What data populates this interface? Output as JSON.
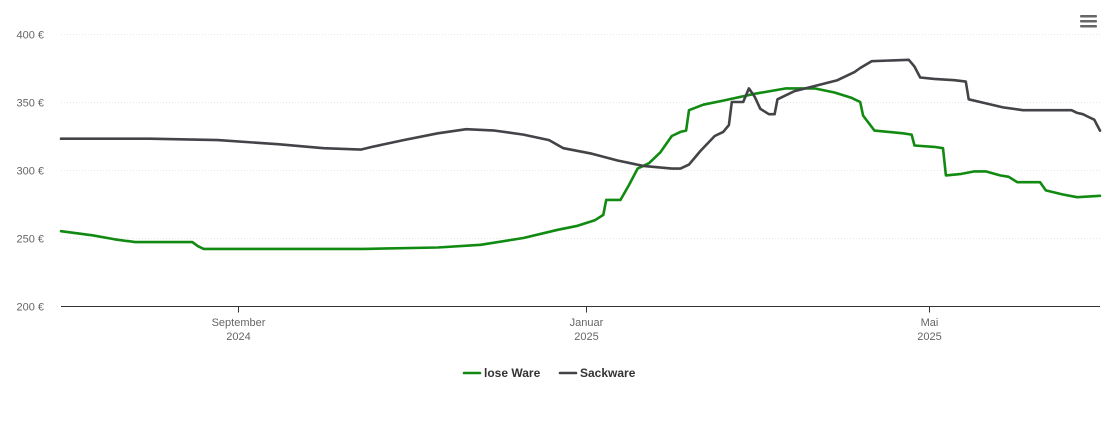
{
  "chart_data": {
    "type": "line",
    "title": "",
    "xlabel": "",
    "ylabel": "",
    "ylim": [
      200,
      400
    ],
    "xlim": [
      "2024-07-01",
      "2025-06-30"
    ],
    "y_ticks": [
      {
        "value": 400,
        "label": "400 €"
      },
      {
        "value": 350,
        "label": "350 €"
      },
      {
        "value": 300,
        "label": "300 €"
      },
      {
        "value": 250,
        "label": "250 €"
      },
      {
        "value": 200,
        "label": "200 €"
      }
    ],
    "x_ticks": [
      {
        "date": "2024-09-01",
        "month": "September",
        "year": "2024"
      },
      {
        "date": "2025-01-01",
        "month": "Januar",
        "year": "2025"
      },
      {
        "date": "2025-05-01",
        "month": "Mai",
        "year": "2025"
      }
    ],
    "grid": true,
    "legend_position": "bottom-center",
    "series": [
      {
        "name": "lose Ware",
        "color": "#118a11",
        "points": [
          [
            "2024-07-01",
            255
          ],
          [
            "2024-07-12",
            252
          ],
          [
            "2024-07-20",
            249
          ],
          [
            "2024-07-27",
            247
          ],
          [
            "2024-08-10",
            247
          ],
          [
            "2024-08-16",
            247
          ],
          [
            "2024-08-18",
            244
          ],
          [
            "2024-08-20",
            242
          ],
          [
            "2024-09-15",
            242
          ],
          [
            "2024-10-15",
            242
          ],
          [
            "2024-11-10",
            243
          ],
          [
            "2024-11-25",
            245
          ],
          [
            "2024-12-10",
            250
          ],
          [
            "2024-12-22",
            256
          ],
          [
            "2024-12-29",
            259
          ],
          [
            "2025-01-04",
            263
          ],
          [
            "2025-01-07",
            267
          ],
          [
            "2025-01-08",
            278
          ],
          [
            "2025-01-13",
            278
          ],
          [
            "2025-01-16",
            289
          ],
          [
            "2025-01-19",
            301
          ],
          [
            "2025-01-23",
            305
          ],
          [
            "2025-01-27",
            313
          ],
          [
            "2025-01-31",
            325
          ],
          [
            "2025-02-03",
            328
          ],
          [
            "2025-02-05",
            329
          ],
          [
            "2025-02-06",
            344
          ],
          [
            "2025-02-11",
            348
          ],
          [
            "2025-02-18",
            351
          ],
          [
            "2025-03-01",
            356
          ],
          [
            "2025-03-12",
            360
          ],
          [
            "2025-03-22",
            360
          ],
          [
            "2025-03-29",
            357
          ],
          [
            "2025-04-04",
            353
          ],
          [
            "2025-04-07",
            350
          ],
          [
            "2025-04-08",
            340
          ],
          [
            "2025-04-12",
            329
          ],
          [
            "2025-04-22",
            327
          ],
          [
            "2025-04-25",
            326
          ],
          [
            "2025-04-26",
            318
          ],
          [
            "2025-05-03",
            317
          ],
          [
            "2025-05-06",
            316
          ],
          [
            "2025-05-07",
            296
          ],
          [
            "2025-05-12",
            297
          ],
          [
            "2025-05-17",
            299
          ],
          [
            "2025-05-21",
            299
          ],
          [
            "2025-05-26",
            296
          ],
          [
            "2025-05-29",
            295
          ],
          [
            "2025-06-01",
            291
          ],
          [
            "2025-06-09",
            291
          ],
          [
            "2025-06-11",
            285
          ],
          [
            "2025-06-17",
            282
          ],
          [
            "2025-06-22",
            280
          ],
          [
            "2025-06-30",
            281
          ]
        ]
      },
      {
        "name": "Sackware",
        "color": "#434348",
        "points": [
          [
            "2024-07-01",
            323
          ],
          [
            "2024-08-01",
            323
          ],
          [
            "2024-08-25",
            322
          ],
          [
            "2024-09-15",
            319
          ],
          [
            "2024-10-01",
            316
          ],
          [
            "2024-10-14",
            315
          ],
          [
            "2024-10-18",
            317
          ],
          [
            "2024-10-29",
            322
          ],
          [
            "2024-11-10",
            327
          ],
          [
            "2024-11-20",
            330
          ],
          [
            "2024-11-30",
            329
          ],
          [
            "2024-12-10",
            326
          ],
          [
            "2024-12-19",
            322
          ],
          [
            "2024-12-24",
            316
          ],
          [
            "2025-01-03",
            312
          ],
          [
            "2025-01-12",
            307
          ],
          [
            "2025-01-21",
            303
          ],
          [
            "2025-01-31",
            301
          ],
          [
            "2025-02-03",
            301
          ],
          [
            "2025-02-06",
            304
          ],
          [
            "2025-02-10",
            314
          ],
          [
            "2025-02-15",
            325
          ],
          [
            "2025-02-18",
            328
          ],
          [
            "2025-02-20",
            333
          ],
          [
            "2025-02-21",
            350
          ],
          [
            "2025-02-25",
            350
          ],
          [
            "2025-02-27",
            360
          ],
          [
            "2025-03-01",
            354
          ],
          [
            "2025-03-03",
            345
          ],
          [
            "2025-03-06",
            341
          ],
          [
            "2025-03-08",
            341
          ],
          [
            "2025-03-09",
            352
          ],
          [
            "2025-03-15",
            358
          ],
          [
            "2025-03-30",
            366
          ],
          [
            "2025-04-05",
            372
          ],
          [
            "2025-04-07",
            375
          ],
          [
            "2025-04-11",
            380
          ],
          [
            "2025-04-24",
            381
          ],
          [
            "2025-04-26",
            376
          ],
          [
            "2025-04-28",
            368
          ],
          [
            "2025-05-03",
            367
          ],
          [
            "2025-05-10",
            366
          ],
          [
            "2025-05-14",
            365
          ],
          [
            "2025-05-15",
            352
          ],
          [
            "2025-05-19",
            350
          ],
          [
            "2025-05-27",
            346
          ],
          [
            "2025-06-03",
            344
          ],
          [
            "2025-06-20",
            344
          ],
          [
            "2025-06-22",
            342
          ],
          [
            "2025-06-24",
            341
          ],
          [
            "2025-06-26",
            339
          ],
          [
            "2025-06-28",
            337
          ],
          [
            "2025-06-29",
            333
          ],
          [
            "2025-06-30",
            329
          ]
        ]
      }
    ]
  },
  "menu": {
    "icon": "hamburger-menu-icon"
  }
}
